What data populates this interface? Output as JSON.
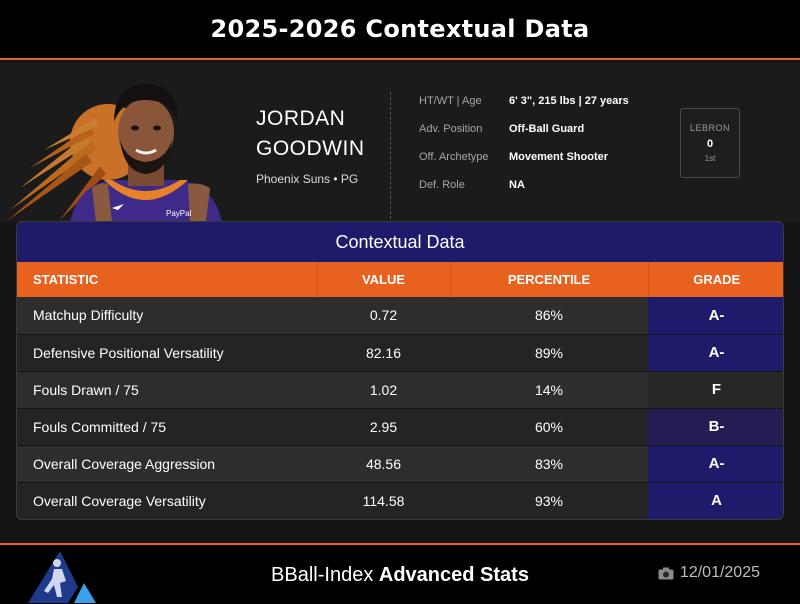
{
  "header": {
    "title": "2025-2026 Contextual Data"
  },
  "player": {
    "first_name": "JORDAN",
    "last_name": "GOODWIN",
    "team_position": "Phoenix Suns • PG",
    "jersey_text": "PayPal"
  },
  "info": [
    {
      "label": "HT/WT | Age",
      "value": "6' 3\", 215 lbs | 27 years"
    },
    {
      "label": "Adv. Position",
      "value": "Off-Ball Guard"
    },
    {
      "label": "Off. Archetype",
      "value": "Movement Shooter"
    },
    {
      "label": "Def. Role",
      "value": "NA"
    }
  ],
  "lebron": {
    "label": "LEBRON",
    "value": "0",
    "rank": "1st"
  },
  "panel": {
    "title": "Contextual Data",
    "columns": [
      "STATISTIC",
      "VALUE",
      "PERCENTILE",
      "GRADE"
    ],
    "rows": [
      {
        "statistic": "Matchup Difficulty",
        "value": "0.72",
        "percentile": "86%",
        "grade": "A-"
      },
      {
        "statistic": "Defensive Positional Versatility",
        "value": "82.16",
        "percentile": "89%",
        "grade": "A-"
      },
      {
        "statistic": "Fouls Drawn / 75",
        "value": "1.02",
        "percentile": "14%",
        "grade": "F"
      },
      {
        "statistic": "Fouls Committed / 75",
        "value": "2.95",
        "percentile": "60%",
        "grade": "B-"
      },
      {
        "statistic": "Overall Coverage Aggression",
        "value": "48.56",
        "percentile": "83%",
        "grade": "A-"
      },
      {
        "statistic": "Overall Coverage Versatility",
        "value": "114.58",
        "percentile": "93%",
        "grade": "A"
      }
    ]
  },
  "footer": {
    "brand_regular": "BBall-Index",
    "brand_bold": "Advanced Stats",
    "date": "12/01/2025",
    "date_icon": "camera-icon"
  },
  "colors": {
    "accent_orange": "#e8611f",
    "panel_navy": "#1f1b6b",
    "background": "#141414"
  }
}
